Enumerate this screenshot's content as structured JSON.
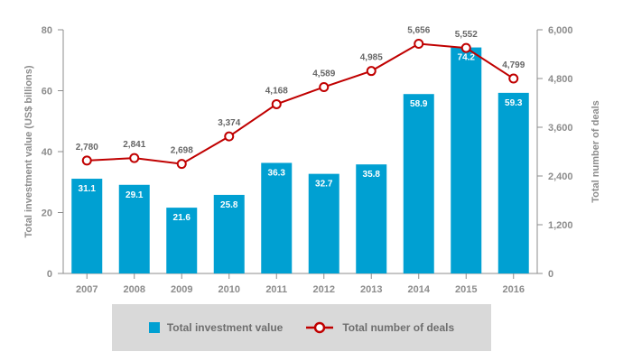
{
  "chart_data": {
    "type": "bar+line",
    "categories": [
      "2007",
      "2008",
      "2009",
      "2010",
      "2011",
      "2012",
      "2013",
      "2014",
      "2015",
      "2016"
    ],
    "series": [
      {
        "name": "Total investment value",
        "type": "bar",
        "axis": "left",
        "color": "#00a0d2",
        "values": [
          31.1,
          29.1,
          21.6,
          25.8,
          36.3,
          32.7,
          35.8,
          58.9,
          74.2,
          59.3
        ],
        "labels": [
          "31.1",
          "29.1",
          "21.6",
          "25.8",
          "36.3",
          "32.7",
          "35.8",
          "58.9",
          "74.2",
          "59.3"
        ]
      },
      {
        "name": "Total number of deals",
        "type": "line",
        "axis": "right",
        "color": "#c00000",
        "values": [
          2780,
          2841,
          2698,
          3374,
          4168,
          4589,
          4985,
          5656,
          5552,
          4799
        ],
        "labels": [
          "2,780",
          "2,841",
          "2,698",
          "3,374",
          "4,168",
          "4,589",
          "4,985",
          "5,656",
          "5,552",
          "4,799"
        ]
      }
    ],
    "y_left": {
      "label": "Total investment value (US$ billions)",
      "range": [
        0,
        80
      ],
      "ticks": [
        0,
        20,
        40,
        60,
        80
      ],
      "tick_labels": [
        "0",
        "20",
        "40",
        "60",
        "80"
      ]
    },
    "y_right": {
      "label": "Total number of deals",
      "range": [
        0,
        6000
      ],
      "ticks": [
        0,
        1200,
        2400,
        3600,
        4800,
        6000
      ],
      "tick_labels": [
        "0",
        "1,200",
        "2,400",
        "3,600",
        "4,800",
        "6,000"
      ]
    },
    "grid": false,
    "legend": {
      "position": "bottom",
      "entries": [
        "Total investment value",
        "Total number of deals"
      ]
    }
  }
}
